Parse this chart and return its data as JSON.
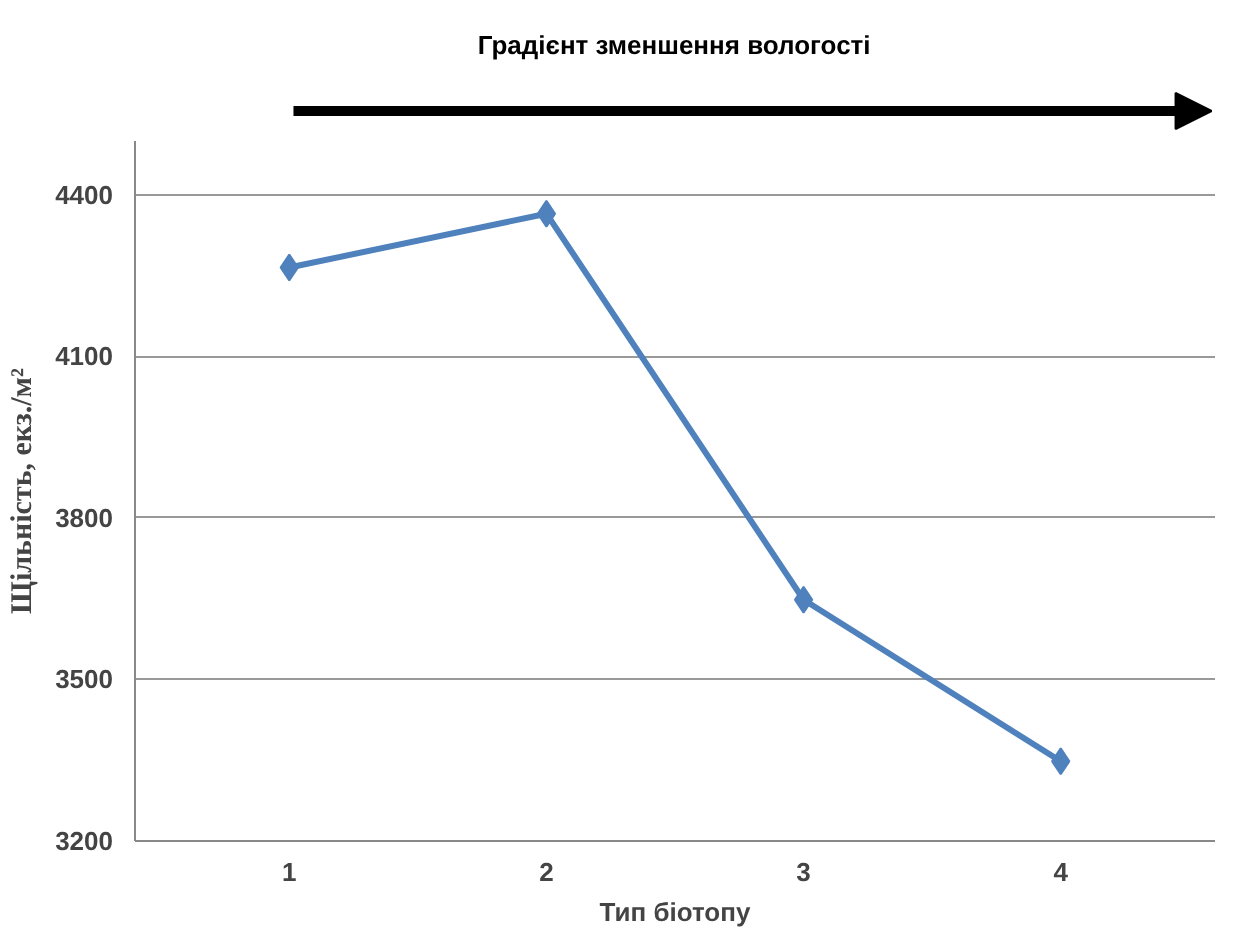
{
  "chart_data": {
    "type": "line",
    "title": "Градієнт зменшення вологості",
    "xlabel": "Тип біотопу",
    "ylabel": "Щільність, екз./м²",
    "categories": [
      "1",
      "2",
      "3",
      "4"
    ],
    "series": [
      {
        "color": "#4f81bd",
        "values": [
          4265,
          4365,
          3648,
          3348
        ]
      }
    ],
    "ylim": [
      3200,
      4500
    ],
    "yticks": [
      3200,
      3500,
      3800,
      4100,
      4400
    ],
    "grid": "y",
    "marker": "diamond",
    "line_style": "solid"
  }
}
